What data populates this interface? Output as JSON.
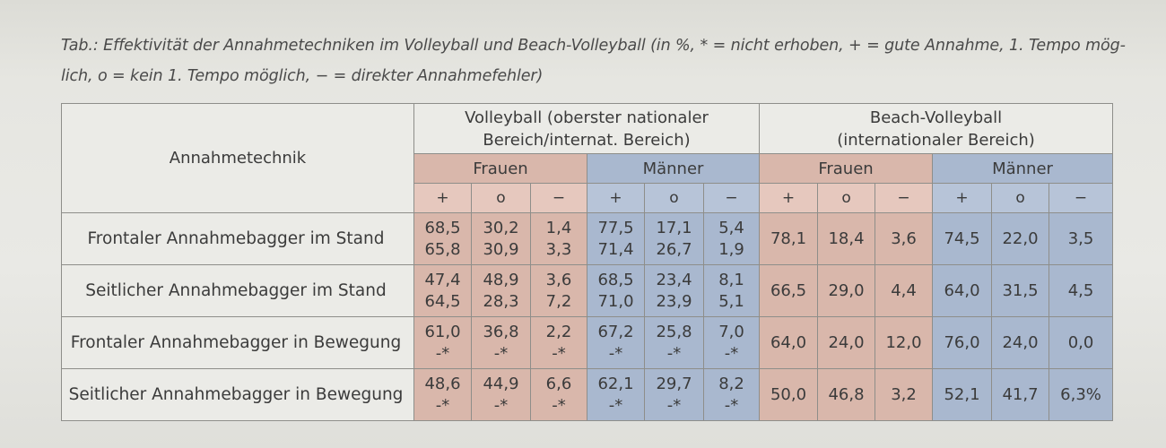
{
  "caption": {
    "line1": "Tab.: Effektivität der Annahmetechniken im Volleyball und Beach-Volleyball (in %, * = nicht erhoben, + = gute Annahme, 1. Tempo mög-",
    "line2": "lich, o = kein 1. Tempo möglich, − = direkter Annahmefehler)"
  },
  "header": {
    "technik": "Annahmetechnik",
    "volleyball_line1": "Volleyball (oberster nationaler",
    "volleyball_line2": "Bereich/internat. Bereich)",
    "beach_line1": "Beach-Volleyball",
    "beach_line2": "(internationaler Bereich)",
    "frauen": "Frauen",
    "maenner": "Männer",
    "plus": "+",
    "o": "o",
    "minus": "−"
  },
  "rows": [
    {
      "label": "Frontaler Annahmebagger im Stand",
      "vb": [
        [
          "68,5",
          "65,8"
        ],
        [
          "30,2",
          "30,9"
        ],
        [
          "1,4",
          "3,3"
        ],
        [
          "77,5",
          "71,4"
        ],
        [
          "17,1",
          "26,7"
        ],
        [
          "5,4",
          "1,9"
        ]
      ],
      "beach": [
        "78,1",
        "18,4",
        "3,6",
        "74,5",
        "22,0",
        "3,5"
      ]
    },
    {
      "label": "Seitlicher Annahmebagger im Stand",
      "vb": [
        [
          "47,4",
          "64,5"
        ],
        [
          "48,9",
          "28,3"
        ],
        [
          "3,6",
          "7,2"
        ],
        [
          "68,5",
          "71,0"
        ],
        [
          "23,4",
          "23,9"
        ],
        [
          "8,1",
          "5,1"
        ]
      ],
      "beach": [
        "66,5",
        "29,0",
        "4,4",
        "64,0",
        "31,5",
        "4,5"
      ]
    },
    {
      "label": "Frontaler Annahmebagger in Bewegung",
      "vb": [
        [
          "61,0",
          "-*"
        ],
        [
          "36,8",
          "-*"
        ],
        [
          "2,2",
          "-*"
        ],
        [
          "67,2",
          "-*"
        ],
        [
          "25,8",
          "-*"
        ],
        [
          "7,0",
          "-*"
        ]
      ],
      "beach": [
        "64,0",
        "24,0",
        "12,0",
        "76,0",
        "24,0",
        "0,0"
      ]
    },
    {
      "label": "Seitlicher Annahmebagger in Bewegung",
      "vb": [
        [
          "48,6",
          "-*"
        ],
        [
          "44,9",
          "-*"
        ],
        [
          "6,6",
          "-*"
        ],
        [
          "62,1",
          "-*"
        ],
        [
          "29,7",
          "-*"
        ],
        [
          "8,2",
          "-*"
        ]
      ],
      "beach": [
        "50,0",
        "46,8",
        "3,2",
        "52,1",
        "41,7",
        "6,3%"
      ]
    }
  ],
  "colors": {
    "frauen": "#d9b7ab",
    "maenner": "#a9b8cf"
  }
}
